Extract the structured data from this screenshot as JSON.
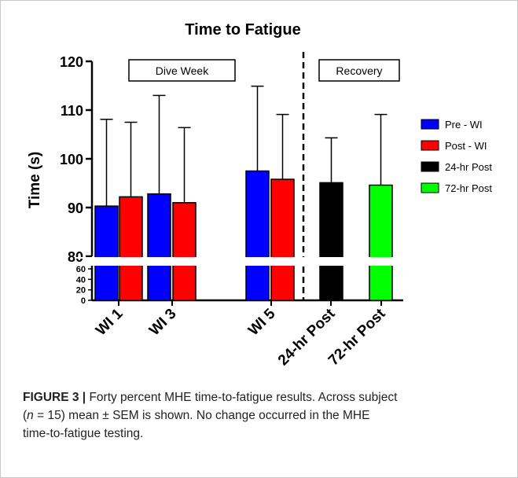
{
  "chart_data": {
    "type": "bar",
    "title": "Time to Fatigue",
    "ylabel": "Time (s)",
    "xlabel": "",
    "categories": [
      "WI 1",
      "WI 3",
      "WI 5",
      "24-hr Post",
      "72-hr Post"
    ],
    "ylim": [
      0,
      120
    ],
    "axis_break": {
      "lower_ticks": [
        0,
        20,
        40,
        60
      ],
      "upper_ticks": [
        80,
        90,
        100,
        110,
        120
      ]
    },
    "grid": false,
    "legend_placement": "right",
    "error_bars": "SEM (upper)",
    "groups": [
      {
        "name": "Dive Week",
        "categories": [
          "WI 1",
          "WI 3",
          "WI 5"
        ]
      },
      {
        "name": "Recovery",
        "categories": [
          "24-hr Post",
          "72-hr Post"
        ]
      }
    ],
    "series": [
      {
        "name": "Pre - WI",
        "color": "#0000ff",
        "values": [
          90.3,
          92.8,
          97.5,
          null,
          null
        ],
        "error": [
          17.8,
          20.2,
          17.4,
          null,
          null
        ]
      },
      {
        "name": "Post - WI",
        "color": "#ff0000",
        "values": [
          92.2,
          91.0,
          95.8,
          null,
          null
        ],
        "error": [
          15.3,
          15.4,
          13.3,
          null,
          null
        ]
      },
      {
        "name": "24-hr Post",
        "color": "#000000",
        "values": [
          null,
          null,
          null,
          95.1,
          null
        ],
        "error": [
          null,
          null,
          null,
          9.2,
          null
        ]
      },
      {
        "name": "72-hr Post",
        "color": "#00ff00",
        "values": [
          null,
          null,
          null,
          null,
          94.6
        ],
        "error": [
          null,
          null,
          null,
          null,
          14.5
        ]
      }
    ]
  },
  "caption": {
    "figure_label": "FIGURE 3 |",
    "line1": " Forty percent MHE time-to-fatigue results. Across subject",
    "line2_open": "(",
    "line2_n": "n",
    "line2_rest": " = 15) mean ± SEM is shown. No change occurred in the MHE",
    "line3": "time-to-fatigue testing."
  }
}
